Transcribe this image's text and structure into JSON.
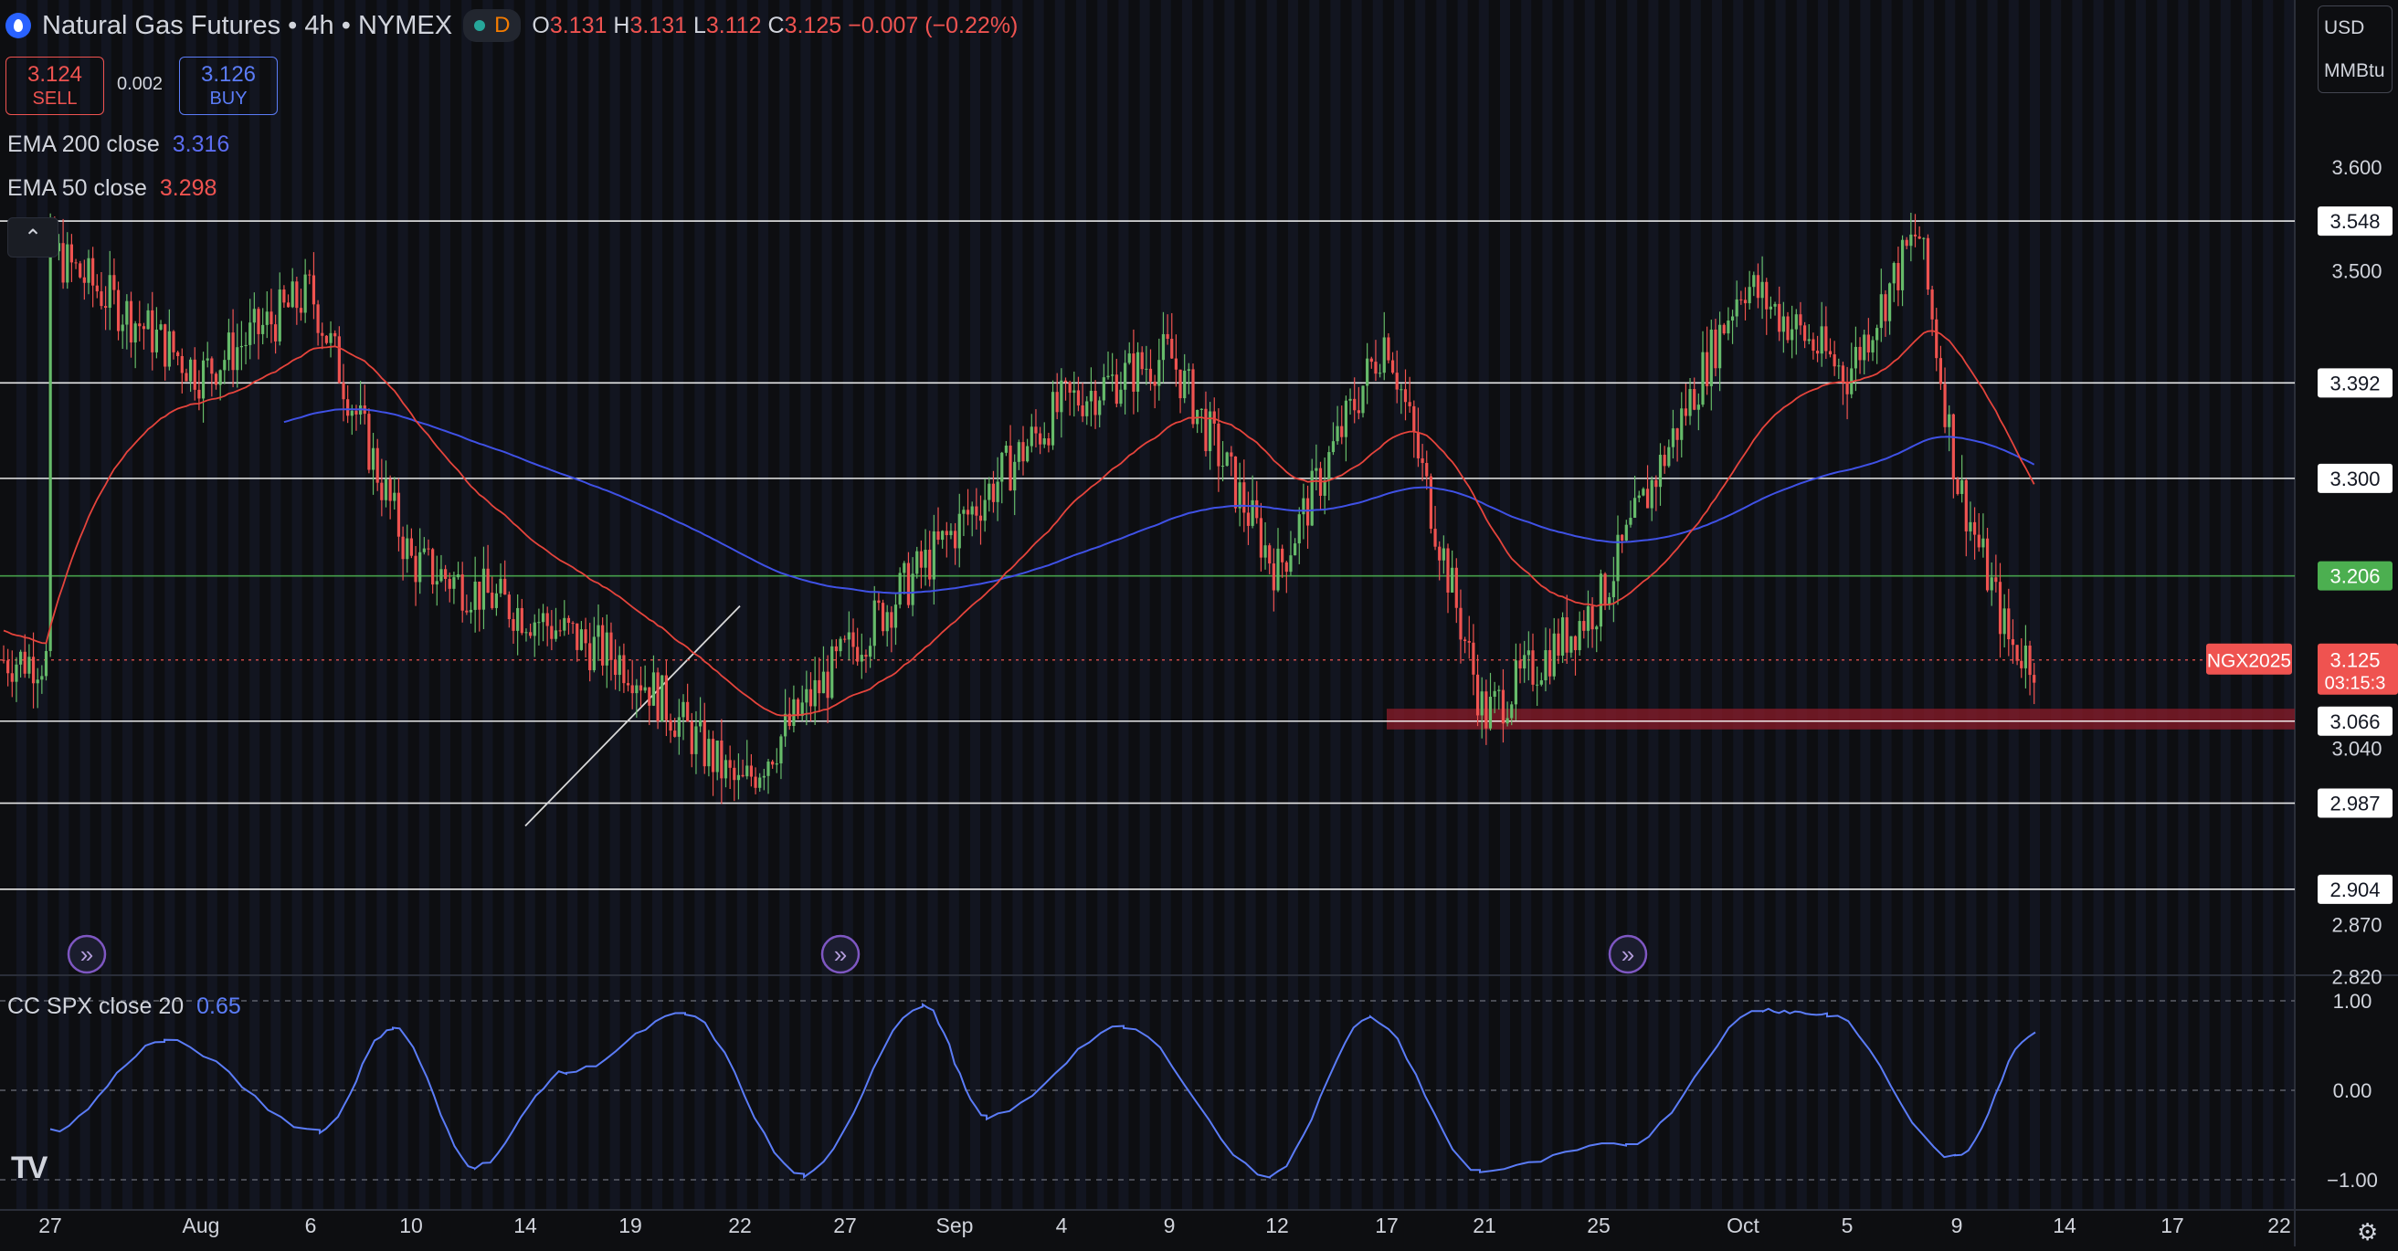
{
  "header": {
    "symbol_title": "Natural Gas Futures",
    "interval": "4h",
    "exchange": "NYMEX",
    "separator": "•",
    "status_badge": "D",
    "ohlc": {
      "o_label": "O",
      "o": "3.131",
      "h_label": "H",
      "h": "3.131",
      "l_label": "L",
      "l": "3.112",
      "c_label": "C",
      "c": "3.125",
      "change": "−0.007 (−0.22%)"
    }
  },
  "trade": {
    "sell_price": "3.124",
    "sell_label": "SELL",
    "spread": "0.002",
    "buy_price": "3.126",
    "buy_label": "BUY"
  },
  "indicators": {
    "ema200_label": "EMA 200 close",
    "ema200_value": "3.316",
    "ema50_label": "EMA 50 close",
    "ema50_value": "3.298",
    "cc_label": "CC SPX close 20",
    "cc_value": "0.65"
  },
  "currency": {
    "ccy": "USD",
    "unit": "MMBtu"
  },
  "icons": {
    "collapse": "chevron-up-icon",
    "settings": "gear-icon",
    "logo": "tradingview-logo",
    "event": "forward-arrow-icon",
    "logo_text": "TV"
  },
  "colors": {
    "background": "#0d0e11",
    "bull": "#26a69a",
    "bull_candle": "#66bb6a",
    "bear": "#ef5350",
    "ema200": "#3f51e5",
    "ema50": "#e5443c",
    "oscillator": "#5b7cf7",
    "support_zone": "#8b1c2a",
    "green_level": "#4caf50"
  },
  "chart_data": [
    {
      "type": "candlestick",
      "title": "Natural Gas Futures · 4h · NYMEX",
      "ylim": [
        2.8,
        3.65
      ],
      "price_axis_ticks": [
        "3.600",
        "3.500",
        "3.040",
        "2.870",
        "2.820"
      ],
      "x_tick_labels": [
        "27",
        "Aug",
        "6",
        "10",
        "14",
        "19",
        "22",
        "27",
        "Sep",
        "4",
        "9",
        "12",
        "17",
        "21",
        "25",
        "Oct",
        "5",
        "9",
        "14",
        "17",
        "22"
      ],
      "horizontal_levels": [
        {
          "value": 3.548,
          "label": "3.548",
          "color": "#ffffff"
        },
        {
          "value": 3.392,
          "label": "3.392",
          "color": "#ffffff"
        },
        {
          "value": 3.3,
          "label": "3.300",
          "color": "#ffffff"
        },
        {
          "value": 3.206,
          "label": "3.206",
          "color": "#4caf50"
        },
        {
          "value": 3.066,
          "label": "3.066",
          "color": "#ffffff"
        },
        {
          "value": 2.987,
          "label": "2.987",
          "color": "#ffffff"
        },
        {
          "value": 2.904,
          "label": "2.904",
          "color": "#ffffff"
        }
      ],
      "support_zone": {
        "from": 3.058,
        "to": 3.078,
        "start_category": "17"
      },
      "trendline": {
        "from": [
          "14",
          2.965
        ],
        "to": [
          "22",
          3.177
        ]
      },
      "last_price": {
        "symbol": "NGX2025",
        "value": 3.125,
        "label": "3.125",
        "countdown": "03:15:3"
      },
      "price_anchors": [
        [
          "27",
          3.52
        ],
        [
          "Aug",
          3.4
        ],
        [
          "6",
          3.48
        ],
        [
          "10",
          3.22
        ],
        [
          "14",
          3.17
        ],
        [
          "19",
          3.12
        ],
        [
          "22",
          3.0
        ],
        [
          "27",
          3.13
        ],
        [
          "Sep",
          3.25
        ],
        [
          "4",
          3.37
        ],
        [
          "9",
          3.42
        ],
        [
          "12",
          3.21
        ],
        [
          "17",
          3.44
        ],
        [
          "21",
          3.07
        ],
        [
          "25",
          3.18
        ],
        [
          "Oct",
          3.49
        ],
        [
          "5",
          3.4
        ],
        [
          "9",
          3.54
        ],
        [
          "9",
          3.3
        ],
        [
          "9",
          3.14
        ],
        [
          "9",
          3.125
        ]
      ],
      "series": [
        {
          "name": "EMA 200 close",
          "last": 3.316
        },
        {
          "name": "EMA 50 close",
          "last": 3.298
        }
      ]
    },
    {
      "type": "line",
      "title": "CC SPX close 20",
      "ylim": [
        -1,
        1
      ],
      "y_ticks": [
        "1.00",
        "0.00",
        "−1.00"
      ],
      "series": [
        {
          "name": "CC SPX close 20",
          "anchors": [
            [
              "27",
              -0.45
            ],
            [
              "Aug",
              0.55
            ],
            [
              "6",
              -0.45
            ],
            [
              "10",
              0.7
            ],
            [
              "14",
              -0.85
            ],
            [
              "19",
              0.2
            ],
            [
              "22",
              0.85
            ],
            [
              "27",
              -0.95
            ],
            [
              "Sep",
              0.95
            ],
            [
              "4",
              -0.3
            ],
            [
              "9",
              0.7
            ],
            [
              "12",
              -0.95
            ],
            [
              "17",
              0.8
            ],
            [
              "21",
              -0.9
            ],
            [
              "25",
              -0.6
            ],
            [
              "Oct",
              0.9
            ],
            [
              "5",
              0.85
            ],
            [
              "9",
              -0.75
            ],
            [
              "9",
              0.65
            ]
          ]
        }
      ]
    }
  ]
}
